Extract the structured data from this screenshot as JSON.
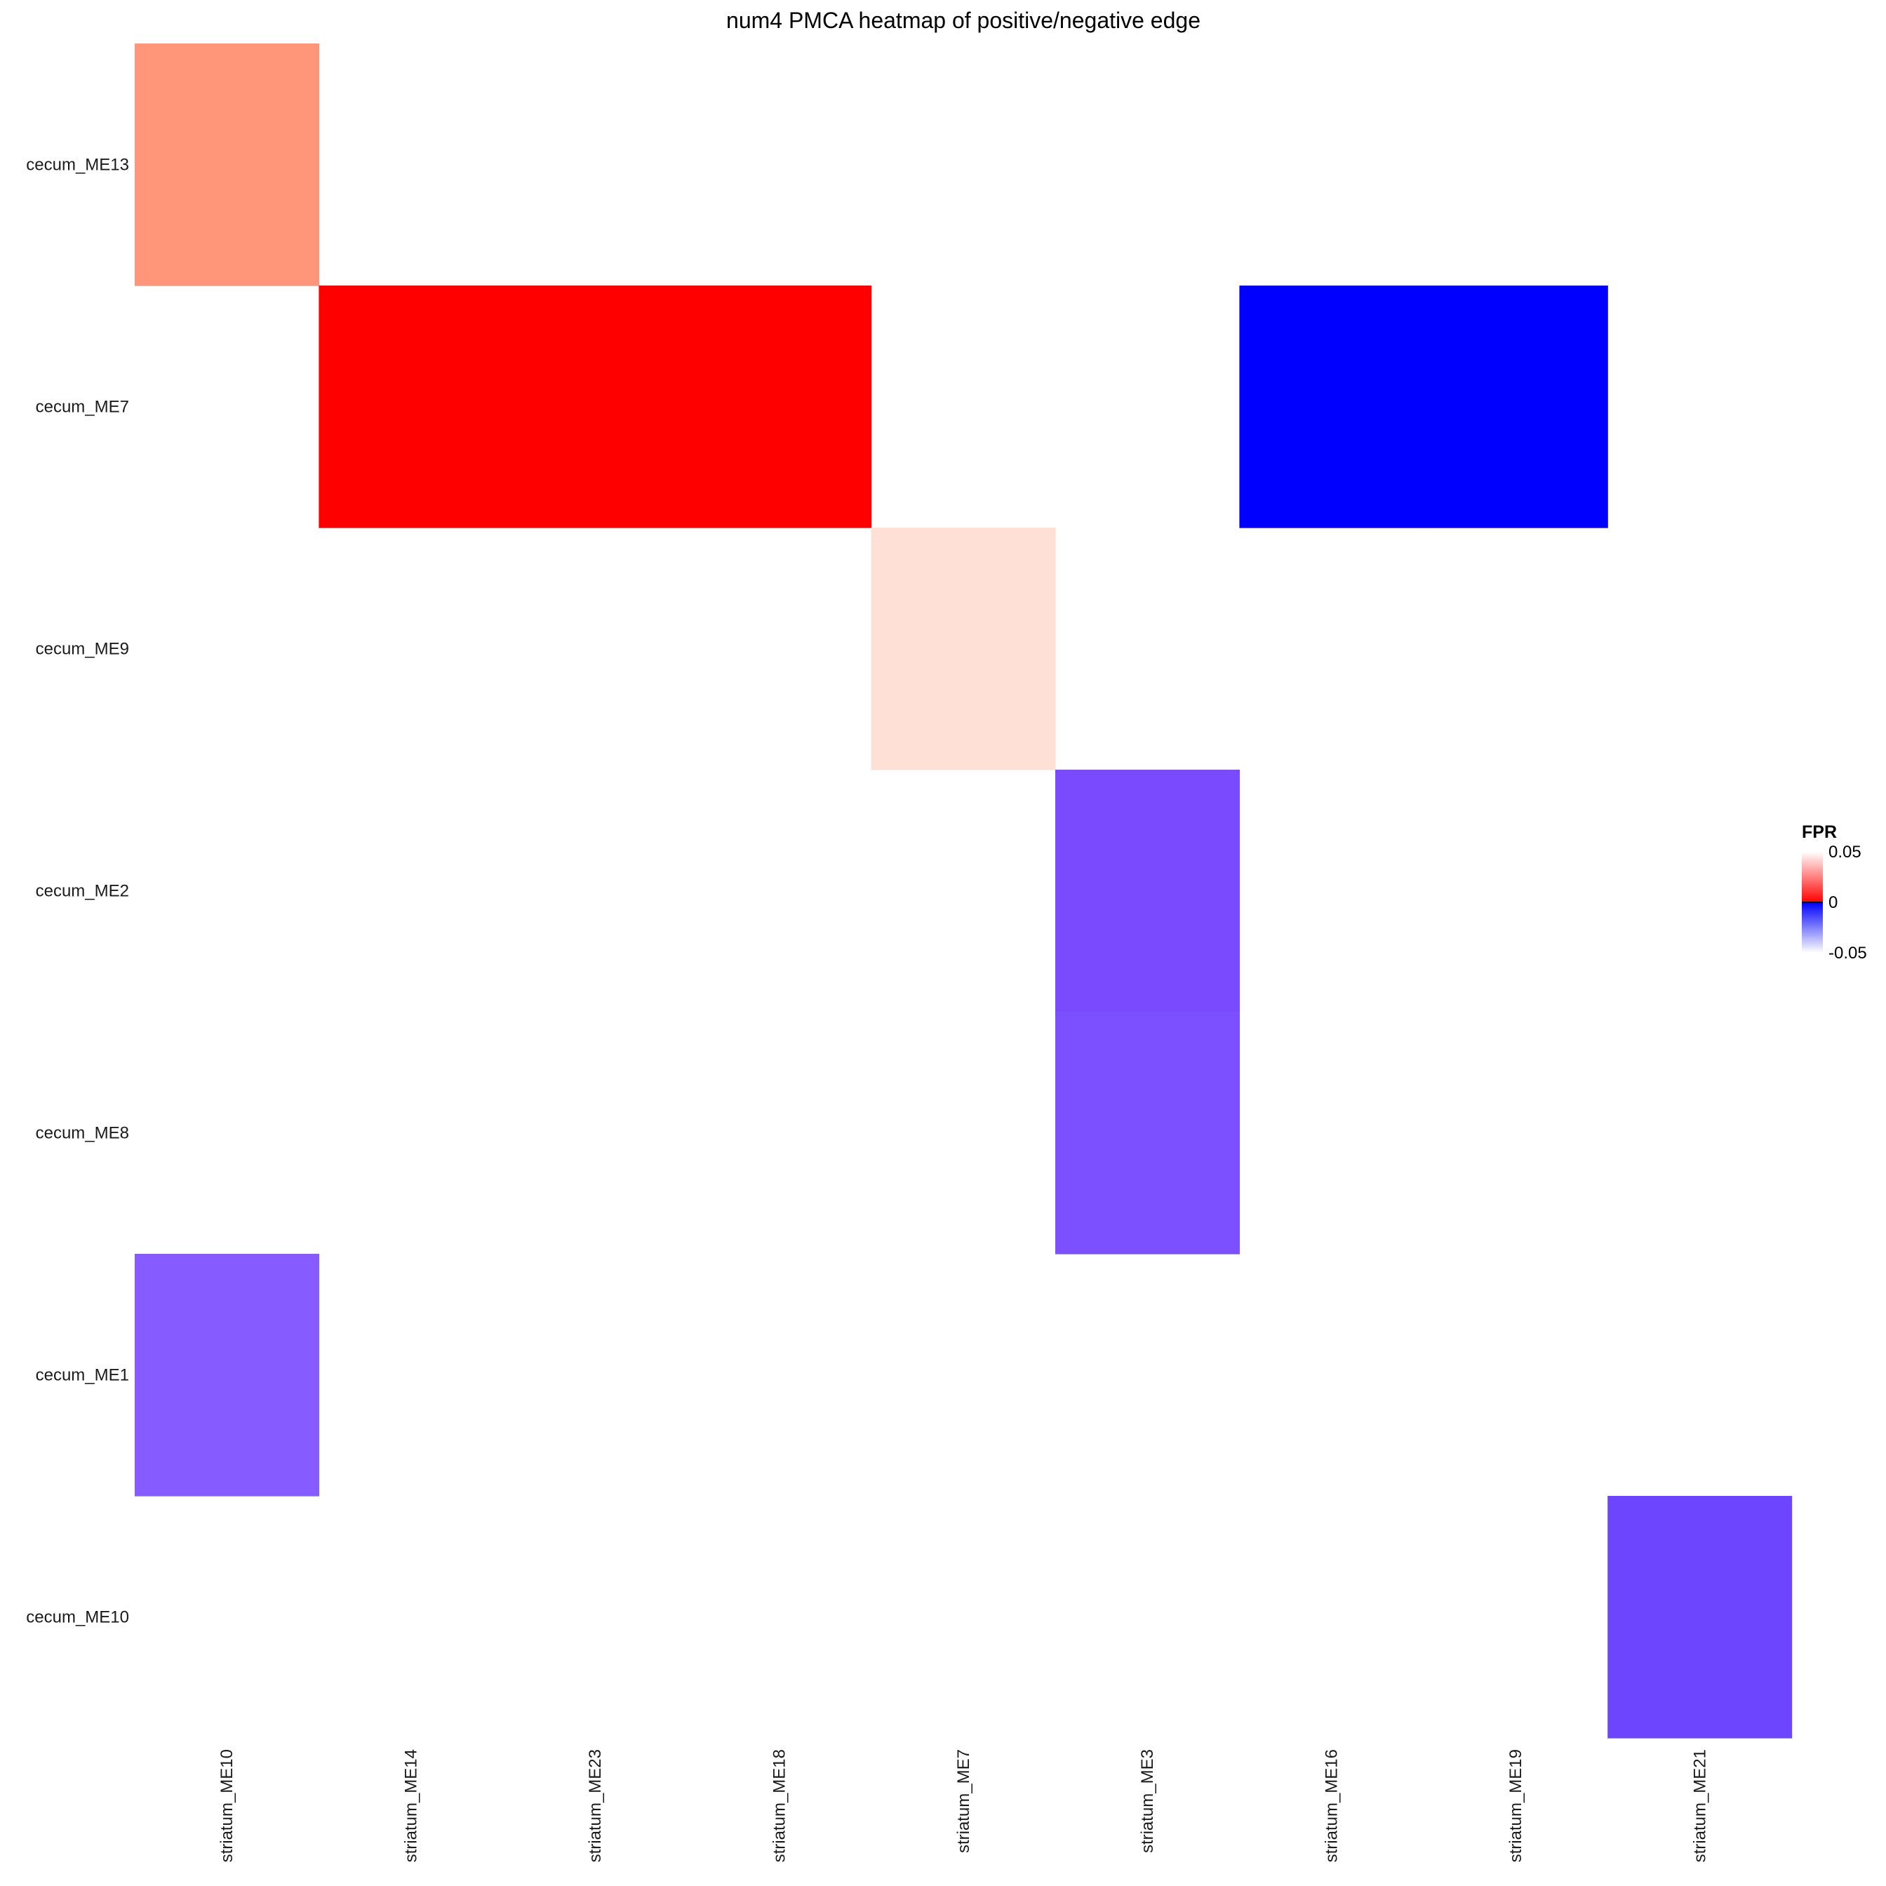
{
  "chart_data": {
    "type": "heatmap",
    "title": "num4 PMCA heatmap of positive/negative edge",
    "columns": [
      "striatum_ME10",
      "striatum_ME14",
      "striatum_ME23",
      "striatum_ME18",
      "striatum_ME7",
      "striatum_ME3",
      "striatum_ME16",
      "striatum_ME19",
      "striatum_ME21"
    ],
    "rows": [
      "cecum_ME13",
      "cecum_ME7",
      "cecum_ME9",
      "cecum_ME2",
      "cecum_ME8",
      "cecum_ME1",
      "cecum_ME10"
    ],
    "cells": [
      {
        "row": "cecum_ME13",
        "col": "striatum_ME10",
        "value": 0.025,
        "color": "#ff967a"
      },
      {
        "row": "cecum_ME7",
        "col": "striatum_ME14",
        "value": 0.0,
        "color": "#ff0000"
      },
      {
        "row": "cecum_ME7",
        "col": "striatum_ME23",
        "value": 0.0,
        "color": "#ff0000"
      },
      {
        "row": "cecum_ME7",
        "col": "striatum_ME18",
        "value": 0.0,
        "color": "#ff0000"
      },
      {
        "row": "cecum_ME7",
        "col": "striatum_ME16",
        "value": 0.0,
        "color": "#0000ff"
      },
      {
        "row": "cecum_ME7",
        "col": "striatum_ME19",
        "value": 0.0,
        "color": "#0000ff"
      },
      {
        "row": "cecum_ME9",
        "col": "striatum_ME7",
        "value": 0.045,
        "color": "#ffe0d7"
      },
      {
        "row": "cecum_ME2",
        "col": "striatum_ME3",
        "value": -0.016,
        "color": "#7a4aff"
      },
      {
        "row": "cecum_ME8",
        "col": "striatum_ME3",
        "value": -0.017,
        "color": "#7d50ff"
      },
      {
        "row": "cecum_ME1",
        "col": "striatum_ME10",
        "value": -0.02,
        "color": "#865bff"
      },
      {
        "row": "cecum_ME10",
        "col": "striatum_ME21",
        "value": -0.012,
        "color": "#6e45ff"
      }
    ],
    "legend": {
      "title": "FPR",
      "placement": "right",
      "ticks": [
        "0.05",
        "0",
        "-0.05"
      ],
      "tick_values": [
        0.05,
        0,
        -0.05
      ],
      "range": [
        -0.05,
        0.05
      ]
    },
    "colors": {
      "positive_high": "#ffffff",
      "positive_zero": "#ff0000",
      "negative_zero": "#0000ff",
      "negative_low": "#ffffff",
      "zero_line": "#000000"
    }
  }
}
